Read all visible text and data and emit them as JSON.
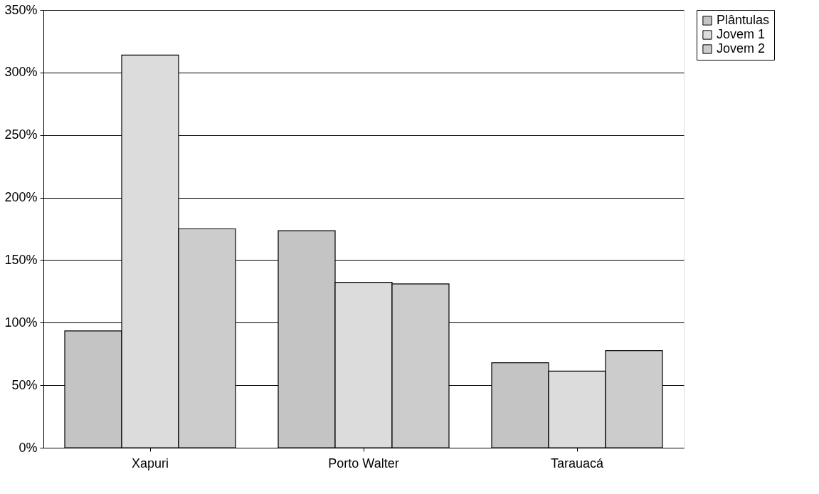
{
  "chart_data": {
    "type": "bar",
    "categories": [
      "Xapuri",
      "Porto Walter",
      "Tarauacá"
    ],
    "series": [
      {
        "name": "Plântulas",
        "color": "#c4c4c4",
        "values": [
          93.4,
          173.5,
          67.9
        ]
      },
      {
        "name": "Jovem 1",
        "color": "#dcdcdc",
        "values": [
          313.9,
          132.3,
          61.2
        ]
      },
      {
        "name": "Jovem 2",
        "color": "#cccccc",
        "values": [
          175.0,
          131.0,
          77.6
        ]
      }
    ],
    "ylim": [
      0,
      350
    ],
    "yticks": [
      {
        "value": 0,
        "label": "0%"
      },
      {
        "value": 50,
        "label": "50%"
      },
      {
        "value": 100,
        "label": "100%"
      },
      {
        "value": 150,
        "label": "150%"
      },
      {
        "value": 200,
        "label": "200%"
      },
      {
        "value": 250,
        "label": "250%"
      },
      {
        "value": 300,
        "label": "300%"
      },
      {
        "value": 350,
        "label": "350%"
      }
    ],
    "grid": "y",
    "legend": "right"
  }
}
